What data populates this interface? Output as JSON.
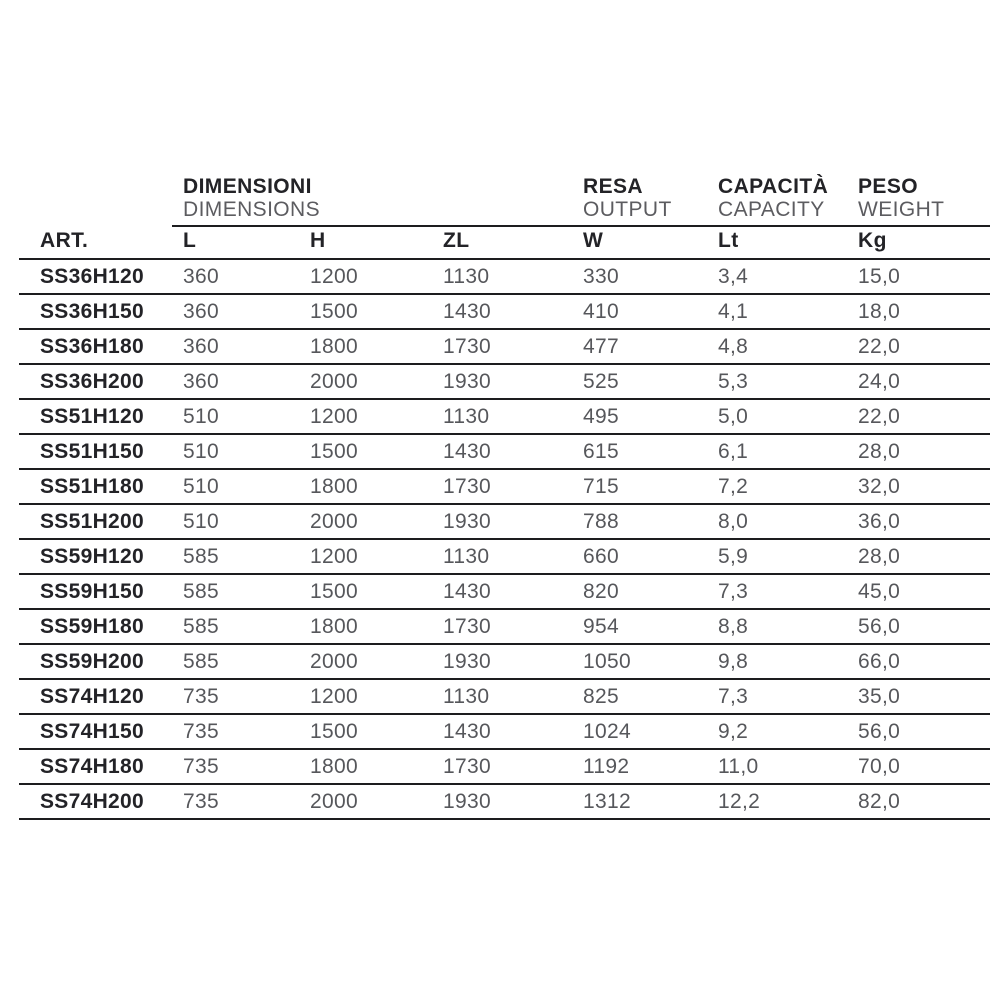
{
  "colors": {
    "background": "#ffffff",
    "text_dark": "#232327",
    "text_gray": "#56575b",
    "rule_line": "#1d1d1f"
  },
  "table": {
    "group_headers": [
      {
        "line1": "DIMENSIONI",
        "line2": "DIMENSIONS"
      },
      {
        "line1": "RESA",
        "line2": "OUTPUT"
      },
      {
        "line1": "CAPACITÀ",
        "line2": "CAPACITY"
      },
      {
        "line1": "PESO",
        "line2": "WEIGHT"
      }
    ],
    "columns": [
      "ART.",
      "L",
      "H",
      "ZL",
      "W",
      "Lt",
      "Kg"
    ],
    "rows": [
      {
        "art": "SS36H120",
        "l": "360",
        "h": "1200",
        "zl": "1130",
        "w": "330",
        "lt": "3,4",
        "kg": "15,0"
      },
      {
        "art": "SS36H150",
        "l": "360",
        "h": "1500",
        "zl": "1430",
        "w": "410",
        "lt": "4,1",
        "kg": "18,0"
      },
      {
        "art": "SS36H180",
        "l": "360",
        "h": "1800",
        "zl": "1730",
        "w": "477",
        "lt": "4,8",
        "kg": "22,0"
      },
      {
        "art": "SS36H200",
        "l": "360",
        "h": "2000",
        "zl": "1930",
        "w": "525",
        "lt": "5,3",
        "kg": "24,0"
      },
      {
        "art": "SS51H120",
        "l": "510",
        "h": "1200",
        "zl": "1130",
        "w": "495",
        "lt": "5,0",
        "kg": "22,0"
      },
      {
        "art": "SS51H150",
        "l": "510",
        "h": "1500",
        "zl": "1430",
        "w": "615",
        "lt": "6,1",
        "kg": "28,0"
      },
      {
        "art": "SS51H180",
        "l": "510",
        "h": "1800",
        "zl": "1730",
        "w": "715",
        "lt": "7,2",
        "kg": "32,0"
      },
      {
        "art": "SS51H200",
        "l": "510",
        "h": "2000",
        "zl": "1930",
        "w": "788",
        "lt": "8,0",
        "kg": "36,0"
      },
      {
        "art": "SS59H120",
        "l": "585",
        "h": "1200",
        "zl": "1130",
        "w": "660",
        "lt": "5,9",
        "kg": "28,0"
      },
      {
        "art": "SS59H150",
        "l": "585",
        "h": "1500",
        "zl": "1430",
        "w": "820",
        "lt": "7,3",
        "kg": "45,0"
      },
      {
        "art": "SS59H180",
        "l": "585",
        "h": "1800",
        "zl": "1730",
        "w": "954",
        "lt": "8,8",
        "kg": "56,0"
      },
      {
        "art": "SS59H200",
        "l": "585",
        "h": "2000",
        "zl": "1930",
        "w": "1050",
        "lt": "9,8",
        "kg": "66,0"
      },
      {
        "art": "SS74H120",
        "l": "735",
        "h": "1200",
        "zl": "1130",
        "w": "825",
        "lt": "7,3",
        "kg": "35,0"
      },
      {
        "art": "SS74H150",
        "l": "735",
        "h": "1500",
        "zl": "1430",
        "w": "1024",
        "lt": "9,2",
        "kg": "56,0"
      },
      {
        "art": "SS74H180",
        "l": "735",
        "h": "1800",
        "zl": "1730",
        "w": "1192",
        "lt": "11,0",
        "kg": "70,0"
      },
      {
        "art": "SS74H200",
        "l": "735",
        "h": "2000",
        "zl": "1930",
        "w": "1312",
        "lt": "12,2",
        "kg": "82,0"
      }
    ]
  },
  "chart_data": {
    "type": "table",
    "column_groups": [
      {
        "label_it": "DIMENSIONI",
        "label_en": "DIMENSIONS",
        "columns": [
          "L",
          "H",
          "ZL"
        ]
      },
      {
        "label_it": "RESA",
        "label_en": "OUTPUT",
        "columns": [
          "W"
        ]
      },
      {
        "label_it": "CAPACITÀ",
        "label_en": "CAPACITY",
        "columns": [
          "Lt"
        ]
      },
      {
        "label_it": "PESO",
        "label_en": "WEIGHT",
        "columns": [
          "Kg"
        ]
      }
    ],
    "columns": [
      "ART.",
      "L",
      "H",
      "ZL",
      "W",
      "Lt",
      "Kg"
    ],
    "rows": [
      [
        "SS36H120",
        "360",
        "1200",
        "1130",
        "330",
        "3,4",
        "15,0"
      ],
      [
        "SS36H150",
        "360",
        "1500",
        "1430",
        "410",
        "4,1",
        "18,0"
      ],
      [
        "SS36H180",
        "360",
        "1800",
        "1730",
        "477",
        "4,8",
        "22,0"
      ],
      [
        "SS36H200",
        "360",
        "2000",
        "1930",
        "525",
        "5,3",
        "24,0"
      ],
      [
        "SS51H120",
        "510",
        "1200",
        "1130",
        "495",
        "5,0",
        "22,0"
      ],
      [
        "SS51H150",
        "510",
        "1500",
        "1430",
        "615",
        "6,1",
        "28,0"
      ],
      [
        "SS51H180",
        "510",
        "1800",
        "1730",
        "715",
        "7,2",
        "32,0"
      ],
      [
        "SS51H200",
        "510",
        "2000",
        "1930",
        "788",
        "8,0",
        "36,0"
      ],
      [
        "SS59H120",
        "585",
        "1200",
        "1130",
        "660",
        "5,9",
        "28,0"
      ],
      [
        "SS59H150",
        "585",
        "1500",
        "1430",
        "820",
        "7,3",
        "45,0"
      ],
      [
        "SS59H180",
        "585",
        "1800",
        "1730",
        "954",
        "8,8",
        "56,0"
      ],
      [
        "SS59H200",
        "585",
        "2000",
        "1930",
        "1050",
        "9,8",
        "66,0"
      ],
      [
        "SS74H120",
        "735",
        "1200",
        "1130",
        "825",
        "7,3",
        "35,0"
      ],
      [
        "SS74H150",
        "735",
        "1500",
        "1430",
        "1024",
        "9,2",
        "56,0"
      ],
      [
        "SS74H180",
        "735",
        "1800",
        "1730",
        "1192",
        "11,0",
        "70,0"
      ],
      [
        "SS74H200",
        "735",
        "2000",
        "1930",
        "1312",
        "12,2",
        "82,0"
      ]
    ]
  }
}
